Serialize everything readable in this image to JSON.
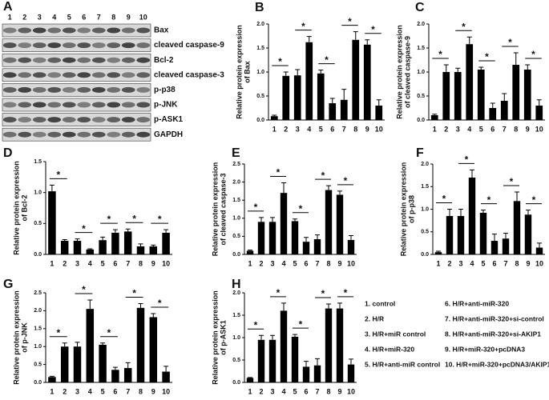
{
  "figure_a": {
    "panel_label": "A",
    "lanes": [
      "1",
      "2",
      "3",
      "4",
      "5",
      "6",
      "7",
      "8",
      "9",
      "10"
    ],
    "bands": [
      "Bax",
      "cleaved caspase-9",
      "Bcl-2",
      "cleaved caspase-3",
      "p-p38",
      "p-JNK",
      "p-ASK1",
      "GAPDH"
    ]
  },
  "chart_data": [
    {
      "type": "bar",
      "panel_label": "B",
      "y_label": [
        "Relative protein expression",
        "of Bax"
      ],
      "color": "#000000",
      "categories": [
        "1",
        "2",
        "3",
        "4",
        "5",
        "6",
        "7",
        "8",
        "9",
        "10"
      ],
      "values": [
        0.08,
        0.92,
        0.93,
        1.62,
        0.97,
        0.35,
        0.42,
        1.67,
        1.57,
        0.3
      ],
      "errors": [
        0.02,
        0.08,
        0.12,
        0.12,
        0.07,
        0.1,
        0.22,
        0.17,
        0.1,
        0.12
      ],
      "ylim": [
        0,
        2.0
      ],
      "yticks": [
        {
          "value": 0,
          "label": "0.0"
        },
        {
          "value": 0.5,
          "label": "0.5"
        },
        {
          "value": 1,
          "label": "1.0"
        },
        {
          "value": 1.5,
          "label": "1.5"
        },
        {
          "value": 2,
          "label": "2.0"
        }
      ],
      "annotations": [
        "*",
        "*",
        "*",
        "*",
        "*"
      ]
    },
    {
      "type": "bar",
      "panel_label": "C",
      "y_label": [
        "Relative protein expression",
        "of cleaved caspase-9"
      ],
      "color": "#000000",
      "categories": [
        "1",
        "2",
        "3",
        "4",
        "5",
        "6",
        "7",
        "8",
        "9",
        "10"
      ],
      "values": [
        0.1,
        1.0,
        1.0,
        1.58,
        1.05,
        0.25,
        0.4,
        1.15,
        1.05,
        0.3
      ],
      "errors": [
        0.02,
        0.15,
        0.08,
        0.15,
        0.05,
        0.1,
        0.15,
        0.25,
        0.1,
        0.12
      ],
      "ylim": [
        0,
        2.0
      ],
      "yticks": [
        {
          "value": 0,
          "label": "0.0"
        },
        {
          "value": 0.5,
          "label": "0.5"
        },
        {
          "value": 1,
          "label": "1.0"
        },
        {
          "value": 1.5,
          "label": "1.5"
        },
        {
          "value": 2,
          "label": "2.0"
        }
      ],
      "annotations": [
        "*",
        "*",
        "*",
        "*",
        "*"
      ]
    },
    {
      "type": "bar",
      "panel_label": "D",
      "y_label": [
        "Relative protein expression",
        "of Bcl-2"
      ],
      "color": "#000000",
      "categories": [
        "1",
        "2",
        "3",
        "4",
        "5",
        "6",
        "7",
        "8",
        "9",
        "10"
      ],
      "values": [
        1.02,
        0.22,
        0.22,
        0.08,
        0.23,
        0.35,
        0.37,
        0.13,
        0.13,
        0.35
      ],
      "errors": [
        0.1,
        0.02,
        0.03,
        0.01,
        0.05,
        0.05,
        0.04,
        0.04,
        0.02,
        0.05
      ],
      "ylim": [
        0,
        1.5
      ],
      "yticks": [
        {
          "value": 0,
          "label": "0.0"
        },
        {
          "value": 0.5,
          "label": "0.5"
        },
        {
          "value": 1,
          "label": "1.0"
        },
        {
          "value": 1.5,
          "label": "1.5"
        }
      ],
      "annotations": [
        "*",
        "*",
        "*",
        "*",
        "*"
      ]
    },
    {
      "type": "bar",
      "panel_label": "E",
      "y_label": [
        "Relative protein expression",
        "of cleaved caspase-3"
      ],
      "color": "#000000",
      "categories": [
        "1",
        "2",
        "3",
        "4",
        "5",
        "6",
        "7",
        "8",
        "9",
        "10"
      ],
      "values": [
        0.1,
        0.9,
        0.9,
        1.7,
        0.92,
        0.35,
        0.42,
        1.78,
        1.65,
        0.4
      ],
      "errors": [
        0.02,
        0.12,
        0.12,
        0.28,
        0.06,
        0.12,
        0.12,
        0.12,
        0.1,
        0.12
      ],
      "ylim": [
        0,
        2.5
      ],
      "yticks": [
        {
          "value": 0,
          "label": "0.0"
        },
        {
          "value": 0.5,
          "label": "0.5"
        },
        {
          "value": 1,
          "label": "1.0"
        },
        {
          "value": 1.5,
          "label": "1.5"
        },
        {
          "value": 2,
          "label": "2.0"
        },
        {
          "value": 2.5,
          "label": "2.5"
        }
      ],
      "annotations": [
        "*",
        "*",
        "*",
        "*",
        "*"
      ]
    },
    {
      "type": "bar",
      "panel_label": "F",
      "y_label": [
        "Relative protein expression",
        "of p-p38"
      ],
      "color": "#000000",
      "categories": [
        "1",
        "2",
        "3",
        "4",
        "5",
        "6",
        "7",
        "8",
        "9",
        "10"
      ],
      "values": [
        0.05,
        0.85,
        0.85,
        1.7,
        0.92,
        0.3,
        0.35,
        1.18,
        0.88,
        0.15
      ],
      "errors": [
        0.02,
        0.15,
        0.15,
        0.17,
        0.06,
        0.15,
        0.12,
        0.2,
        0.1,
        0.1
      ],
      "ylim": [
        0,
        2.0
      ],
      "yticks": [
        {
          "value": 0,
          "label": "0.0"
        },
        {
          "value": 0.5,
          "label": "0.5"
        },
        {
          "value": 1,
          "label": "1.0"
        },
        {
          "value": 1.5,
          "label": "1.5"
        },
        {
          "value": 2,
          "label": "2.0"
        }
      ],
      "annotations": [
        "*",
        "*",
        "*",
        "*",
        "*"
      ]
    },
    {
      "type": "bar",
      "panel_label": "G",
      "y_label": [
        "Relative protein expression",
        "of p-JNK"
      ],
      "color": "#000000",
      "categories": [
        "1",
        "2",
        "3",
        "4",
        "5",
        "6",
        "7",
        "8",
        "9",
        "10"
      ],
      "values": [
        0.15,
        1.0,
        1.0,
        2.05,
        1.05,
        0.35,
        0.4,
        2.08,
        1.82,
        0.3
      ],
      "errors": [
        0.02,
        0.1,
        0.12,
        0.25,
        0.05,
        0.07,
        0.15,
        0.12,
        0.1,
        0.15
      ],
      "ylim": [
        0,
        2.5
      ],
      "yticks": [
        {
          "value": 0,
          "label": "0.0"
        },
        {
          "value": 0.5,
          "label": "0.5"
        },
        {
          "value": 1,
          "label": "1.0"
        },
        {
          "value": 1.5,
          "label": "1.5"
        },
        {
          "value": 2,
          "label": "2.0"
        },
        {
          "value": 2.5,
          "label": "2.5"
        }
      ],
      "annotations": [
        "*",
        "*",
        "*",
        "*",
        "*"
      ]
    },
    {
      "type": "bar",
      "panel_label": "H",
      "y_label": [
        "Relative protein expression",
        "of p-ASK1"
      ],
      "color": "#000000",
      "categories": [
        "1",
        "2",
        "3",
        "4",
        "5",
        "6",
        "7",
        "8",
        "9",
        "10"
      ],
      "values": [
        0.1,
        0.95,
        0.95,
        1.6,
        1.02,
        0.35,
        0.38,
        1.65,
        1.65,
        0.4
      ],
      "errors": [
        0.01,
        0.1,
        0.1,
        0.17,
        0.05,
        0.12,
        0.15,
        0.1,
        0.12,
        0.12
      ],
      "ylim": [
        0,
        2.0
      ],
      "yticks": [
        {
          "value": 0,
          "label": "0.0"
        },
        {
          "value": 0.5,
          "label": "0.5"
        },
        {
          "value": 1,
          "label": "1.0"
        },
        {
          "value": 1.5,
          "label": "1.5"
        },
        {
          "value": 2,
          "label": "2.0"
        }
      ],
      "annotations": [
        "*",
        "*",
        "*",
        "*",
        "*"
      ]
    }
  ],
  "legend": [
    "1. control",
    "2. H/R",
    "3. H/R+miR control",
    "4. H/R+miR-320",
    "5. H/R+anti-miR control",
    "6. H/R+anti-miR-320",
    "7. H/R+anti-miR-320+si-control",
    "8. H/R+anti-miR-320+si-AKIP1",
    "9. H/R+miR-320+pcDNA3",
    "10. H/R+miR-320+pcDNA3/AKIP1"
  ]
}
